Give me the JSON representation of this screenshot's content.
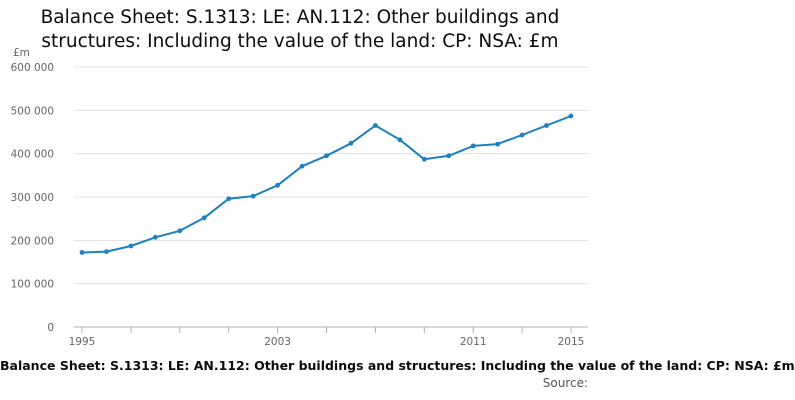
{
  "title_line1": "Balance Sheet: S.1313: LE: AN.112: Other buildings and",
  "title_line2": "structures: Including the value of the land: CP: NSA: £m",
  "legend_text": "Balance Sheet: S.1313: LE: AN.112: Other buildings and structures: Including the value of the land: CP: NSA: £m",
  "source_label": "Source:",
  "colors": {
    "series": "#1d80c0",
    "grid": "#e0e0e0",
    "axis": "#b0b0b0",
    "tick_text": "#666666"
  },
  "chart_data": {
    "type": "line",
    "title": "Balance Sheet: S.1313: LE: AN.112: Other buildings and structures: Including the value of the land: CP: NSA: £m",
    "ylabel": "£m",
    "xlabel": "",
    "ylim": [
      0,
      600000
    ],
    "xlim": [
      1995,
      2015
    ],
    "y_ticks": [
      0,
      100000,
      200000,
      300000,
      400000,
      500000,
      600000
    ],
    "y_tick_labels": [
      "0",
      "100 000",
      "200 000",
      "300 000",
      "400 000",
      "500 000",
      "600 000"
    ],
    "x_tick_labels": [
      "1995",
      "2003",
      "2011",
      "2015"
    ],
    "x_tick_positions": [
      1995,
      2003,
      2011,
      2015
    ],
    "x_minor_ticks": [
      1995,
      1997,
      1999,
      2001,
      2003,
      2005,
      2007,
      2009,
      2011,
      2013,
      2015
    ],
    "grid": true,
    "series": [
      {
        "name": "Balance Sheet: S.1313: LE: AN.112: Other buildings and structures: Including the value of the land: CP: NSA: £m",
        "x": [
          1995,
          1996,
          1997,
          1998,
          1999,
          2000,
          2001,
          2002,
          2003,
          2004,
          2005,
          2006,
          2007,
          2008,
          2009,
          2010,
          2011,
          2012,
          2013,
          2014,
          2015
        ],
        "values": [
          172000,
          174000,
          187000,
          207000,
          222000,
          252000,
          296000,
          302000,
          327000,
          371000,
          395000,
          424000,
          465000,
          432000,
          387000,
          395000,
          418000,
          422000,
          443000,
          465000,
          487000
        ]
      }
    ]
  }
}
